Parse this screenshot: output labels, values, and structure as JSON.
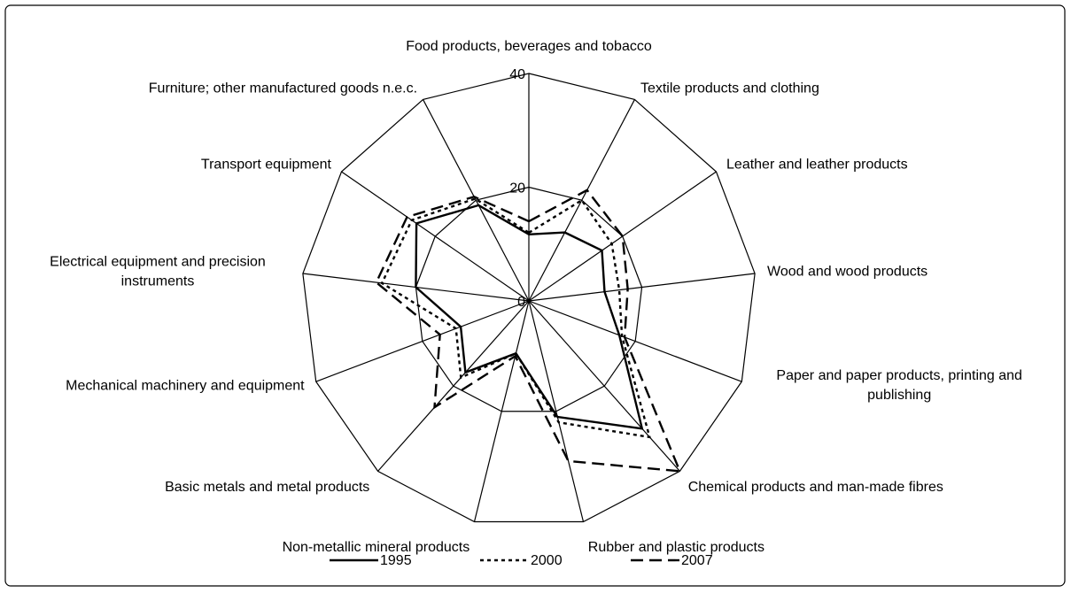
{
  "chart_data": {
    "type": "radar",
    "categories": [
      "Food products, beverages and tobacco",
      "Textile products and clothing",
      "Leather and leather products",
      "Wood and wood products",
      "Paper and paper products, printing and publishing",
      "Chemical products and man-made fibres",
      "Rubber and plastic products",
      "Non-metallic mineral products",
      "Basic metals and metal products",
      "Mechanical machinery and equipment",
      "Electrical equipment and precision instruments",
      "Transport equipment",
      "Furniture; other manufactured goods n.e.c."
    ],
    "series": [
      {
        "name": "1995",
        "color": "#000000",
        "dash": "solid",
        "values": [
          11.7,
          13.6,
          15.6,
          13.4,
          17,
          30,
          21,
          9.5,
          16.8,
          12.8,
          20,
          24,
          19
        ]
      },
      {
        "name": "2000",
        "color": "#000000",
        "dash": "dotted",
        "values": [
          12,
          20,
          17.7,
          16,
          17.5,
          32,
          22,
          9.5,
          18,
          13.7,
          26,
          25,
          20.3
        ]
      },
      {
        "name": "2007",
        "color": "#000000",
        "dash": "dashed",
        "values": [
          14,
          22,
          20,
          17.5,
          18,
          40,
          29,
          10,
          25,
          16.7,
          27,
          26,
          20.7
        ]
      }
    ],
    "rlim": [
      0,
      40
    ],
    "rticks": [
      0,
      20,
      40
    ],
    "grid": true,
    "legend": "bottom"
  }
}
